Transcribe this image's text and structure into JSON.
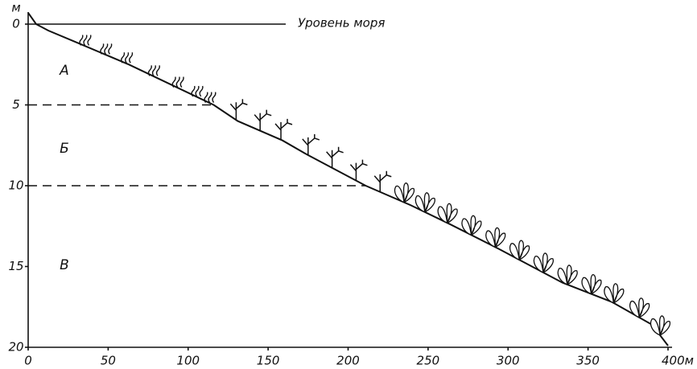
{
  "chart_data": {
    "type": "line",
    "y_axis_label": "м",
    "x": [
      0,
      5,
      12.6,
      33,
      63,
      116,
      131,
      159,
      173,
      211,
      239,
      264,
      294,
      334,
      365,
      390,
      400
    ],
    "values": [
      -0.7,
      0,
      0.4,
      1.25,
      2.5,
      5.0,
      6.0,
      7.2,
      8.0,
      10,
      11.2,
      12.4,
      13.9,
      16,
      17.2,
      18.6,
      19.9
    ],
    "color": "#111111",
    "xlim": [
      0,
      400
    ],
    "xticks": [
      0,
      50,
      100,
      150,
      200,
      250,
      300,
      350,
      {
        "value": 400,
        "label": "400м"
      }
    ],
    "ylim": [
      20,
      0
    ],
    "yticks": [
      0,
      5,
      10,
      15,
      20
    ],
    "reference_lines": [
      {
        "value": 0,
        "label": "Уровень моря",
        "style": "solid"
      },
      {
        "value": 5,
        "style": "dashed"
      },
      {
        "value": 10,
        "style": "dashed"
      }
    ],
    "zones": [
      "А",
      "Б",
      "В"
    ]
  }
}
